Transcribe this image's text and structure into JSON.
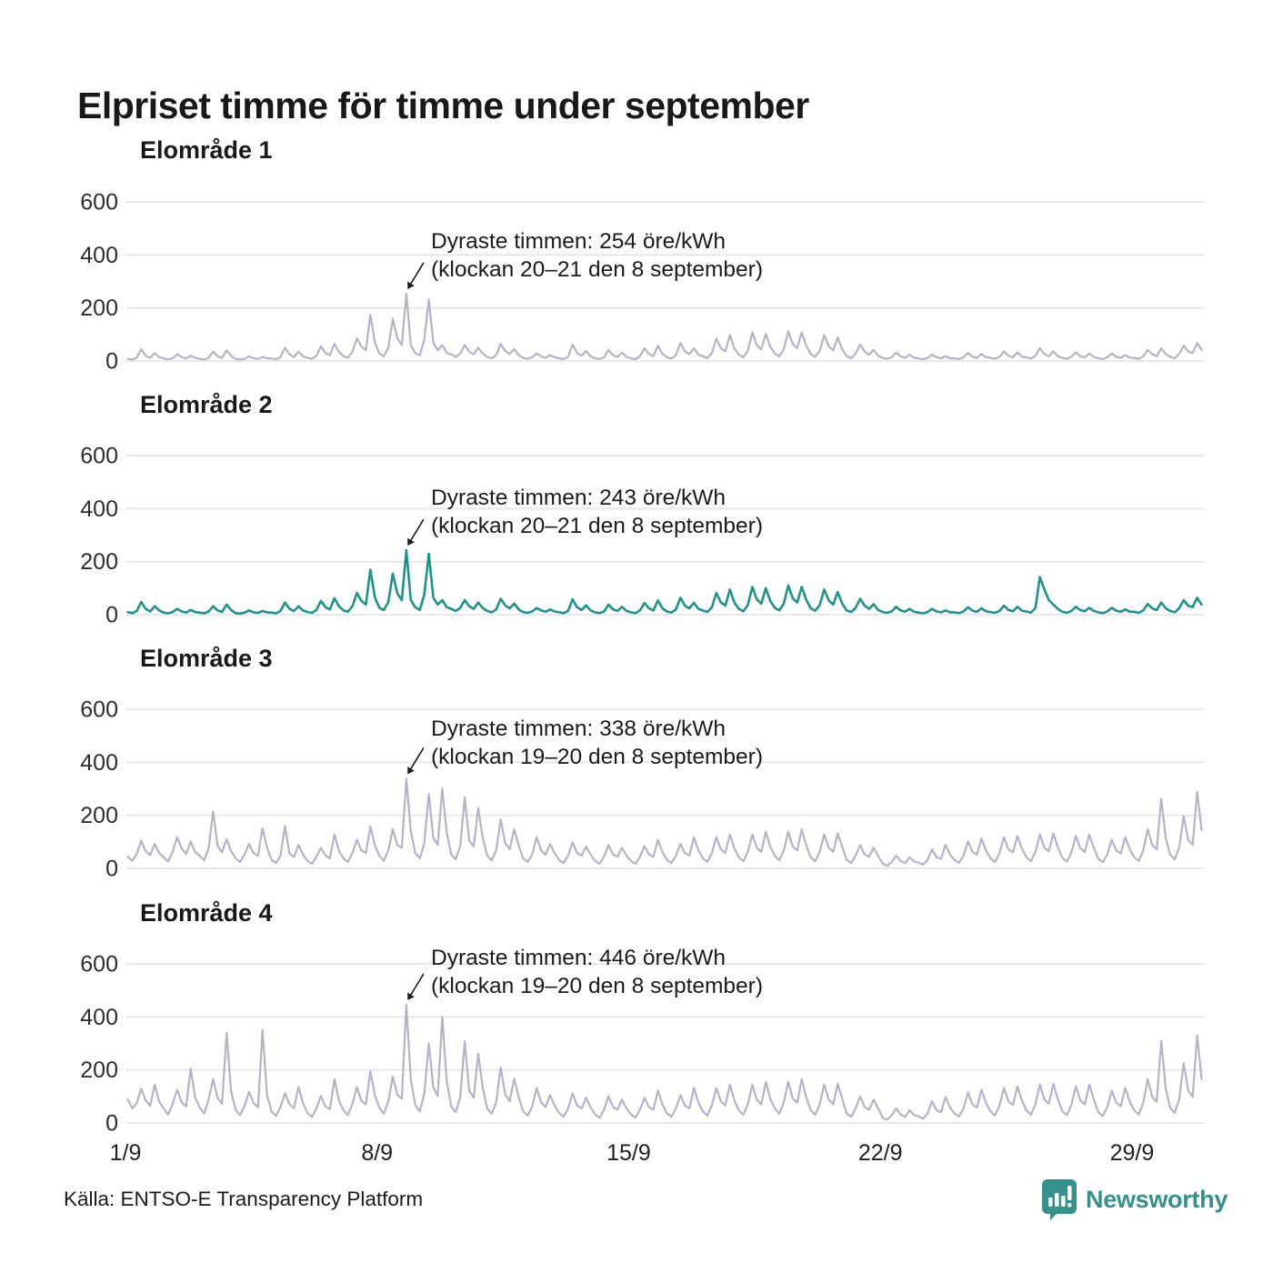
{
  "title": "Elpriset timme för timme under september",
  "source": "Källa: ENTSO-E Transparency Platform",
  "brand": {
    "name": "Newsworthy",
    "color": "#35928a"
  },
  "colors": {
    "line_default": "#b7b2c5",
    "line_highlight": "#1e9489",
    "grid": "#e8e8ec",
    "tick_text": "#2e2e2e",
    "annotation_text": "#1b1b1b"
  },
  "axis": {
    "y_ticks": [
      600,
      400,
      200,
      0
    ],
    "x_ticks": [
      {
        "label": "1/9",
        "day": 1
      },
      {
        "label": "8/9",
        "day": 8
      },
      {
        "label": "15/9",
        "day": 15
      },
      {
        "label": "22/9",
        "day": 22
      },
      {
        "label": "29/9",
        "day": 29
      }
    ]
  },
  "chart_data": [
    {
      "type": "line",
      "title": "Elområde 1",
      "color": "#b7b2c5",
      "ylim": [
        0,
        600
      ],
      "x_unit": "hours since 1 September, 3-hour steps (öre/kWh)",
      "annotation": {
        "line1": "Dyraste timmen: 254 öre/kWh",
        "line2": "(klockan 20–21 den 8 september)",
        "max_value": 254
      },
      "values": [
        8,
        5,
        12,
        45,
        20,
        12,
        30,
        15,
        10,
        6,
        10,
        25,
        14,
        10,
        20,
        12,
        8,
        5,
        12,
        35,
        18,
        12,
        40,
        20,
        8,
        5,
        8,
        18,
        10,
        8,
        15,
        10,
        10,
        6,
        15,
        50,
        25,
        15,
        35,
        18,
        12,
        8,
        20,
        55,
        30,
        22,
        65,
        35,
        18,
        12,
        35,
        85,
        55,
        40,
        175,
        70,
        28,
        18,
        50,
        160,
        85,
        60,
        254,
        60,
        30,
        20,
        80,
        232,
        70,
        40,
        60,
        30,
        25,
        15,
        28,
        60,
        35,
        25,
        50,
        28,
        15,
        10,
        22,
        65,
        38,
        26,
        45,
        22,
        12,
        8,
        14,
        28,
        18,
        12,
        22,
        14,
        10,
        7,
        16,
        62,
        30,
        20,
        38,
        18,
        10,
        7,
        14,
        42,
        22,
        15,
        32,
        16,
        10,
        7,
        18,
        48,
        26,
        18,
        58,
        26,
        14,
        9,
        22,
        68,
        36,
        26,
        48,
        24,
        18,
        11,
        30,
        85,
        48,
        36,
        98,
        48,
        24,
        14,
        38,
        108,
        60,
        44,
        102,
        54,
        28,
        18,
        44,
        112,
        64,
        48,
        108,
        58,
        26,
        16,
        38,
        98,
        56,
        40,
        88,
        44,
        18,
        11,
        28,
        62,
        36,
        24,
        42,
        20,
        12,
        8,
        14,
        32,
        18,
        12,
        24,
        12,
        10,
        6,
        12,
        24,
        14,
        10,
        18,
        10,
        10,
        7,
        14,
        30,
        16,
        12,
        26,
        14,
        12,
        8,
        16,
        36,
        20,
        14,
        32,
        16,
        14,
        9,
        20,
        48,
        26,
        18,
        36,
        18,
        12,
        8,
        16,
        32,
        18,
        14,
        28,
        15,
        10,
        7,
        14,
        28,
        16,
        12,
        22,
        12,
        12,
        8,
        18,
        42,
        26,
        18,
        48,
        26,
        16,
        10,
        26,
        58,
        36,
        30,
        68,
        42
      ]
    },
    {
      "type": "line",
      "title": "Elområde 2",
      "color": "#1e9489",
      "ylim": [
        0,
        600
      ],
      "x_unit": "hours since 1 September, 3-hour steps (öre/kWh)",
      "annotation": {
        "line1": "Dyraste timmen: 243 öre/kWh",
        "line2": "(klockan 20–21 den 8 september)",
        "max_value": 243
      },
      "values": [
        10,
        6,
        14,
        48,
        22,
        12,
        32,
        16,
        8,
        5,
        10,
        22,
        12,
        8,
        18,
        10,
        8,
        5,
        12,
        32,
        16,
        10,
        38,
        18,
        6,
        4,
        8,
        16,
        9,
        7,
        14,
        9,
        8,
        5,
        14,
        46,
        22,
        14,
        32,
        16,
        10,
        7,
        18,
        52,
        28,
        20,
        62,
        32,
        16,
        11,
        32,
        82,
        52,
        38,
        170,
        65,
        26,
        17,
        48,
        155,
        80,
        55,
        243,
        55,
        28,
        18,
        75,
        230,
        65,
        38,
        55,
        28,
        22,
        14,
        26,
        55,
        32,
        22,
        46,
        25,
        14,
        9,
        20,
        60,
        35,
        24,
        42,
        20,
        10,
        7,
        12,
        25,
        16,
        11,
        20,
        12,
        9,
        6,
        14,
        58,
        28,
        18,
        35,
        16,
        9,
        6,
        12,
        38,
        20,
        14,
        30,
        14,
        9,
        6,
        16,
        44,
        24,
        16,
        54,
        24,
        12,
        8,
        20,
        64,
        34,
        24,
        45,
        22,
        16,
        10,
        28,
        82,
        46,
        34,
        95,
        46,
        22,
        13,
        36,
        105,
        58,
        42,
        100,
        52,
        26,
        16,
        42,
        110,
        62,
        46,
        105,
        56,
        24,
        15,
        36,
        95,
        54,
        38,
        85,
        42,
        16,
        10,
        26,
        60,
        34,
        22,
        40,
        18,
        10,
        7,
        12,
        30,
        16,
        11,
        22,
        11,
        8,
        5,
        10,
        22,
        12,
        9,
        16,
        9,
        9,
        6,
        12,
        28,
        15,
        11,
        24,
        13,
        10,
        7,
        14,
        34,
        18,
        13,
        30,
        15,
        12,
        8,
        25,
        142,
        95,
        55,
        38,
        22,
        11,
        7,
        14,
        30,
        17,
        13,
        26,
        14,
        9,
        6,
        12,
        26,
        15,
        11,
        20,
        11,
        11,
        7,
        16,
        40,
        24,
        17,
        46,
        24,
        14,
        9,
        24,
        55,
        34,
        28,
        64,
        38
      ]
    },
    {
      "type": "line",
      "title": "Elområde 3",
      "color": "#b7b2c5",
      "ylim": [
        0,
        600
      ],
      "x_unit": "hours since 1 September, 3-hour steps (öre/kWh)",
      "annotation": {
        "line1": "Dyraste timmen: 338 öre/kWh",
        "line2": "(klockan 19–20 den 8 september)",
        "max_value": 338
      },
      "values": [
        45,
        28,
        55,
        105,
        65,
        50,
        92,
        58,
        42,
        26,
        62,
        118,
        75,
        55,
        102,
        62,
        48,
        30,
        75,
        215,
        85,
        60,
        110,
        66,
        38,
        24,
        52,
        92,
        58,
        48,
        152,
        78,
        32,
        20,
        48,
        160,
        55,
        44,
        88,
        52,
        28,
        17,
        44,
        78,
        48,
        38,
        128,
        66,
        38,
        24,
        58,
        108,
        68,
        58,
        158,
        86,
        48,
        28,
        68,
        148,
        88,
        78,
        338,
        140,
        58,
        38,
        95,
        280,
        115,
        88,
        300,
        135,
        52,
        34,
        85,
        268,
        105,
        82,
        228,
        115,
        48,
        30,
        68,
        185,
        95,
        72,
        148,
        86,
        38,
        24,
        52,
        118,
        68,
        52,
        92,
        58,
        32,
        20,
        48,
        98,
        58,
        48,
        82,
        52,
        28,
        17,
        44,
        88,
        52,
        44,
        78,
        48,
        28,
        17,
        44,
        84,
        52,
        44,
        108,
        62,
        32,
        20,
        48,
        92,
        58,
        48,
        118,
        68,
        38,
        24,
        58,
        118,
        72,
        58,
        128,
        76,
        42,
        27,
        62,
        128,
        78,
        62,
        138,
        82,
        48,
        30,
        68,
        138,
        82,
        68,
        148,
        86,
        42,
        27,
        62,
        128,
        78,
        62,
        132,
        82,
        32,
        20,
        48,
        88,
        52,
        44,
        78,
        48,
        18,
        10,
        24,
        48,
        28,
        20,
        42,
        26,
        22,
        14,
        32,
        72,
        42,
        36,
        88,
        52,
        32,
        21,
        48,
        102,
        62,
        52,
        112,
        68,
        38,
        24,
        58,
        118,
        72,
        60,
        122,
        75,
        42,
        27,
        62,
        128,
        78,
        65,
        132,
        79,
        40,
        25,
        60,
        122,
        76,
        62,
        128,
        78,
        36,
        23,
        52,
        108,
        68,
        56,
        118,
        72,
        42,
        28,
        68,
        148,
        88,
        72,
        262,
        115,
        52,
        34,
        78,
        198,
        108,
        88,
        288,
        145
      ]
    },
    {
      "type": "line",
      "title": "Elområde 4",
      "color": "#b7b2c5",
      "ylim": [
        0,
        600
      ],
      "x_unit": "hours since 1 September, 3-hour steps (öre/kWh)",
      "annotation": {
        "line1": "Dyraste timmen: 446 öre/kWh",
        "line2": "(klockan 19–20 den 8 september)",
        "max_value": 446
      },
      "values": [
        90,
        55,
        75,
        130,
        85,
        65,
        145,
        80,
        55,
        32,
        72,
        125,
        78,
        62,
        205,
        95,
        60,
        36,
        88,
        165,
        95,
        72,
        340,
        120,
        50,
        30,
        65,
        118,
        75,
        60,
        350,
        105,
        44,
        26,
        60,
        112,
        70,
        56,
        135,
        75,
        38,
        23,
        55,
        102,
        62,
        52,
        165,
        85,
        48,
        30,
        72,
        135,
        85,
        70,
        195,
        105,
        58,
        35,
        82,
        175,
        105,
        92,
        446,
        165,
        68,
        44,
        110,
        300,
        135,
        102,
        400,
        155,
        62,
        40,
        98,
        308,
        122,
        95,
        262,
        132,
        55,
        35,
        78,
        210,
        108,
        82,
        168,
        98,
        44,
        28,
        60,
        132,
        78,
        60,
        105,
        66,
        38,
        23,
        55,
        112,
        66,
        55,
        95,
        60,
        32,
        20,
        50,
        100,
        60,
        50,
        88,
        55,
        32,
        20,
        50,
        95,
        60,
        50,
        122,
        70,
        36,
        23,
        55,
        105,
        66,
        55,
        132,
        76,
        44,
        28,
        66,
        132,
        82,
        66,
        145,
        86,
        48,
        31,
        70,
        145,
        88,
        70,
        155,
        92,
        55,
        35,
        78,
        155,
        92,
        76,
        165,
        96,
        48,
        31,
        70,
        145,
        88,
        70,
        148,
        92,
        36,
        23,
        55,
        100,
        60,
        50,
        88,
        55,
        20,
        12,
        28,
        55,
        32,
        23,
        48,
        30,
        25,
        16,
        36,
        82,
        48,
        40,
        98,
        58,
        36,
        24,
        55,
        115,
        70,
        58,
        125,
        76,
        44,
        28,
        66,
        132,
        82,
        68,
        138,
        84,
        48,
        31,
        70,
        145,
        88,
        73,
        148,
        89,
        45,
        29,
        68,
        138,
        86,
        70,
        145,
        88,
        40,
        26,
        60,
        122,
        76,
        63,
        132,
        80,
        48,
        32,
        76,
        165,
        98,
        80,
        310,
        130,
        58,
        38,
        88,
        225,
        122,
        98,
        330,
        165
      ]
    }
  ]
}
